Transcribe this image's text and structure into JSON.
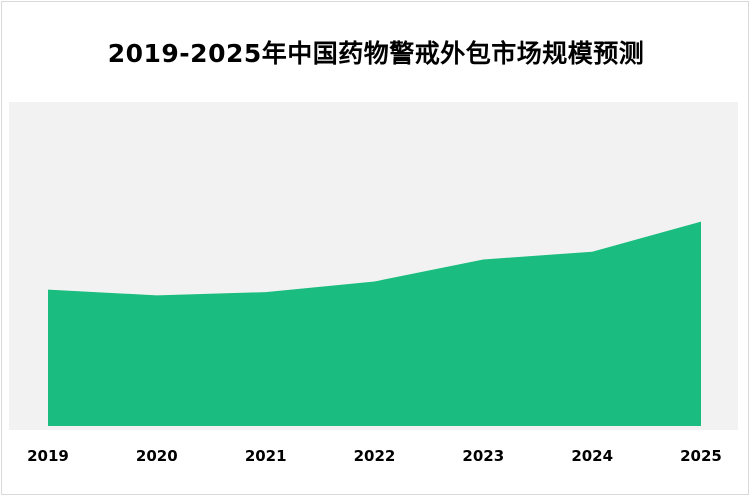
{
  "chart_data": {
    "type": "area",
    "title": "2019-2025年中国药物警戒外包市场规模预测",
    "categories": [
      "2019",
      "2020",
      "2021",
      "2022",
      "2023",
      "2024",
      "2025"
    ],
    "series": [
      {
        "values": [
          45.3,
          43.4,
          44.5,
          48.0,
          55.3,
          57.9,
          67.9
        ]
      }
    ],
    "ylim": [
      0,
      100
    ],
    "grid": false,
    "legend": "none",
    "colors": {
      "area": "#1abc7f",
      "plot_background": "#f2f2f2"
    }
  }
}
